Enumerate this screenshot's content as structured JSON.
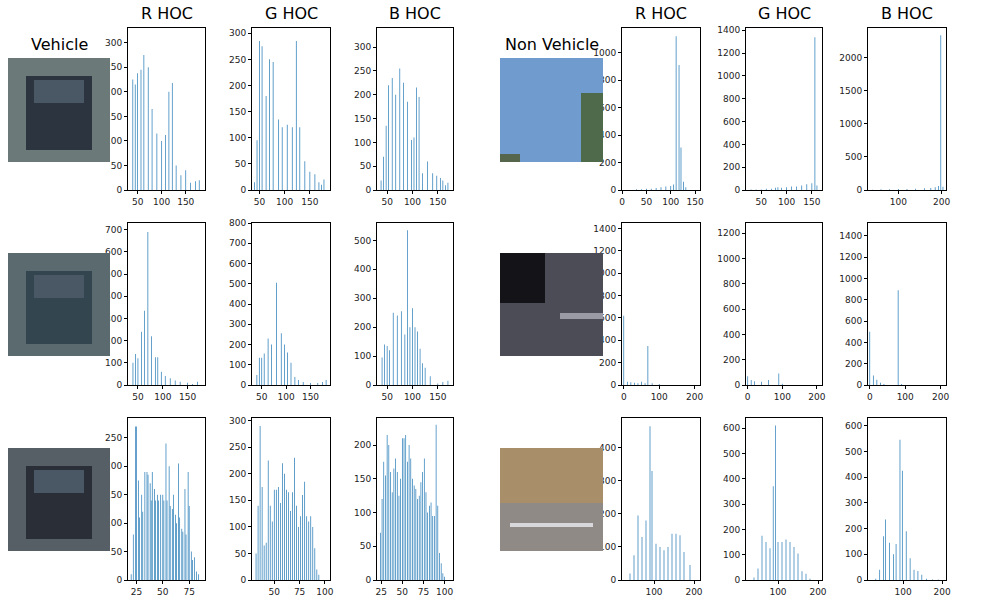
{
  "headings": [
    "Vehicle",
    "Non Vehicle"
  ],
  "chart_data": [
    {
      "type": "bar",
      "title": "R HOC",
      "color": "#1f77b4",
      "x": [
        40,
        45,
        50,
        57,
        63,
        72,
        80,
        90,
        100,
        108,
        115,
        122,
        130,
        140,
        150,
        160,
        170,
        178
      ],
      "values": [
        225,
        215,
        238,
        245,
        275,
        250,
        165,
        115,
        100,
        112,
        200,
        218,
        50,
        30,
        40,
        15,
        18,
        20
      ],
      "xlim": [
        30,
        190
      ],
      "xticks": [
        50,
        100,
        150
      ],
      "ylim": [
        0,
        330
      ],
      "yticks": [
        0,
        50,
        100,
        150,
        200,
        250,
        300
      ]
    },
    {
      "type": "bar",
      "title": "G HOC",
      "color": "#1f77b4",
      "x": [
        40,
        45,
        50,
        55,
        63,
        70,
        77,
        88,
        95,
        105,
        115,
        123,
        130,
        140,
        150,
        160,
        168,
        173,
        178
      ],
      "values": [
        15,
        95,
        285,
        275,
        180,
        250,
        245,
        135,
        120,
        125,
        120,
        285,
        120,
        55,
        35,
        30,
        15,
        10,
        20
      ],
      "xlim": [
        35,
        190
      ],
      "xticks": [
        50,
        100,
        150
      ],
      "ylim": [
        0,
        310
      ],
      "yticks": [
        0,
        50,
        100,
        150,
        200,
        250,
        300
      ]
    },
    {
      "type": "bar",
      "title": "B HOC",
      "color": "#1f77b4",
      "x": [
        38,
        43,
        48,
        53,
        60,
        67,
        75,
        82,
        90,
        98,
        103,
        108,
        113,
        120,
        130,
        140,
        148,
        155,
        160,
        165,
        170
      ],
      "values": [
        20,
        70,
        135,
        220,
        235,
        200,
        255,
        225,
        185,
        105,
        110,
        215,
        195,
        35,
        60,
        35,
        30,
        25,
        20,
        10,
        15
      ],
      "xlim": [
        30,
        180
      ],
      "xticks": [
        50,
        100,
        150
      ],
      "ylim": [
        0,
        340
      ],
      "yticks": [
        0,
        50,
        100,
        150,
        200,
        250,
        300
      ]
    },
    {
      "type": "bar",
      "title": "R HOC",
      "color": "#1f77b4",
      "x": [
        30,
        40,
        50,
        60,
        70,
        80,
        90,
        100,
        106,
        111,
        117,
        121,
        126,
        131
      ],
      "values": [
        5,
        5,
        10,
        10,
        15,
        20,
        25,
        30,
        40,
        1120,
        910,
        310,
        60,
        20
      ],
      "xlim": [
        0,
        160
      ],
      "xticks": [
        0,
        50,
        100,
        150
      ],
      "ylim": [
        0,
        1180
      ],
      "yticks": [
        0,
        200,
        400,
        600,
        800,
        1000
      ]
    },
    {
      "type": "bar",
      "title": "G HOC",
      "color": "#1f77b4",
      "x": [
        30,
        40,
        50,
        60,
        70,
        78,
        83,
        90,
        100,
        110,
        120,
        130,
        140,
        150,
        156,
        160
      ],
      "values": [
        5,
        5,
        5,
        10,
        10,
        20,
        25,
        20,
        25,
        30,
        30,
        40,
        50,
        60,
        1340,
        40
      ],
      "xlim": [
        20,
        170
      ],
      "xticks": [
        50,
        100,
        150
      ],
      "ylim": [
        0,
        1420
      ],
      "yticks": [
        0,
        200,
        400,
        600,
        800,
        1000,
        1200,
        1400
      ]
    },
    {
      "type": "bar",
      "title": "B HOC",
      "color": "#1f77b4",
      "x": [
        40,
        60,
        80,
        100,
        120,
        140,
        160,
        175,
        185,
        193,
        198,
        203
      ],
      "values": [
        5,
        10,
        10,
        15,
        15,
        20,
        25,
        30,
        40,
        60,
        2340,
        50
      ],
      "xlim": [
        30,
        210
      ],
      "xticks": [
        100,
        200
      ],
      "ylim": [
        0,
        2450
      ],
      "yticks": [
        0,
        500,
        1000,
        1500,
        2000
      ]
    },
    {
      "type": "bar",
      "color": "#1f77b4",
      "x": [
        40,
        45,
        50,
        57,
        63,
        70,
        77,
        85,
        90,
        97,
        105,
        115,
        125,
        135,
        150,
        160,
        170
      ],
      "values": [
        100,
        140,
        120,
        240,
        335,
        690,
        220,
        125,
        125,
        60,
        40,
        30,
        20,
        15,
        10,
        5,
        15
      ],
      "xlim": [
        30,
        185
      ],
      "xticks": [
        50,
        100,
        150
      ],
      "ylim": [
        0,
        730
      ],
      "yticks": [
        0,
        100,
        200,
        300,
        400,
        500,
        600,
        700
      ]
    },
    {
      "type": "bar",
      "color": "#1f77b4",
      "x": [
        40,
        45,
        50,
        55,
        63,
        70,
        80,
        90,
        97,
        103,
        110,
        118,
        125,
        135,
        150,
        165,
        175,
        182
      ],
      "values": [
        50,
        135,
        135,
        155,
        230,
        200,
        505,
        255,
        200,
        160,
        110,
        40,
        25,
        15,
        10,
        10,
        15,
        25
      ],
      "xlim": [
        30,
        190
      ],
      "xticks": [
        50,
        100,
        150
      ],
      "ylim": [
        0,
        800
      ],
      "yticks": [
        0,
        100,
        200,
        300,
        400,
        500,
        600,
        700,
        800
      ]
    },
    {
      "type": "bar",
      "color": "#1f77b4",
      "x": [
        40,
        45,
        50,
        55,
        62,
        70,
        78,
        85,
        90,
        95,
        100,
        105,
        110,
        115,
        120,
        125,
        135,
        150,
        160,
        170
      ],
      "values": [
        95,
        140,
        135,
        120,
        250,
        240,
        255,
        175,
        535,
        200,
        265,
        200,
        185,
        125,
        75,
        60,
        30,
        5,
        10,
        15
      ],
      "xlim": [
        30,
        180
      ],
      "xticks": [
        50,
        100,
        150
      ],
      "ylim": [
        0,
        560
      ],
      "yticks": [
        0,
        100,
        200,
        300,
        400,
        500
      ]
    },
    {
      "type": "bar",
      "color": "#1f77b4",
      "x": [
        0,
        10,
        20,
        30,
        40,
        50,
        60,
        68,
        80,
        100
      ],
      "values": [
        620,
        30,
        25,
        20,
        15,
        30,
        15,
        350,
        15,
        10
      ],
      "xlim": [
        -5,
        215
      ],
      "xticks": [
        0,
        100,
        200
      ],
      "ylim": [
        0,
        1450
      ],
      "yticks": [
        0,
        200,
        400,
        600,
        800,
        1000,
        1200,
        1400
      ]
    },
    {
      "type": "bar",
      "color": "#1f77b4",
      "x": [
        0,
        10,
        20,
        40,
        60,
        90,
        100
      ],
      "values": [
        70,
        40,
        30,
        25,
        40,
        90,
        10
      ],
      "xlim": [
        -5,
        215
      ],
      "xticks": [
        0,
        100,
        200
      ],
      "ylim": [
        0,
        1280
      ],
      "yticks": [
        0,
        200,
        400,
        600,
        800,
        1000,
        1200
      ]
    },
    {
      "type": "bar",
      "color": "#1f77b4",
      "x": [
        0,
        10,
        20,
        30,
        40,
        80,
        90
      ],
      "values": [
        500,
        90,
        50,
        20,
        10,
        890,
        10
      ],
      "xlim": [
        -5,
        215
      ],
      "xticks": [
        0,
        100,
        200
      ],
      "ylim": [
        0,
        1520
      ],
      "yticks": [
        0,
        200,
        400,
        600,
        800,
        1000,
        1200,
        1400
      ]
    },
    {
      "type": "bar",
      "color": "#1f77b4",
      "x": [
        20,
        22,
        24,
        25,
        27,
        28,
        30,
        31,
        33,
        35,
        36,
        38,
        39,
        40,
        42,
        43,
        45,
        46,
        48,
        50,
        51,
        53,
        54,
        56,
        57,
        59,
        60,
        62,
        63,
        65,
        66,
        68,
        69,
        71,
        72,
        74,
        75,
        77,
        78,
        80,
        82,
        84
      ],
      "values": [
        10,
        80,
        270,
        270,
        175,
        110,
        150,
        120,
        190,
        190,
        185,
        170,
        140,
        190,
        160,
        140,
        150,
        140,
        150,
        150,
        140,
        240,
        140,
        200,
        130,
        125,
        150,
        115,
        100,
        205,
        110,
        90,
        85,
        160,
        80,
        190,
        130,
        50,
        35,
        40,
        15,
        10
      ],
      "xlim": [
        17,
        90
      ],
      "xticks": [
        25,
        50,
        75
      ],
      "ylim": [
        0,
        285
      ],
      "yticks": [
        0,
        50,
        100,
        150,
        200,
        250
      ]
    },
    {
      "type": "bar",
      "color": "#1f77b4",
      "x": [
        32,
        34,
        36,
        38,
        40,
        42,
        44,
        46,
        48,
        50,
        52,
        54,
        56,
        58,
        60,
        62,
        64,
        66,
        68,
        70,
        72,
        74,
        76,
        78,
        80,
        82,
        84,
        86,
        88,
        90,
        92,
        94
      ],
      "values": [
        50,
        140,
        290,
        175,
        65,
        70,
        225,
        140,
        110,
        170,
        170,
        175,
        145,
        220,
        200,
        170,
        165,
        130,
        165,
        230,
        140,
        100,
        120,
        160,
        185,
        120,
        110,
        120,
        100,
        60,
        20,
        10
      ],
      "xlim": [
        28,
        105
      ],
      "xticks": [
        50,
        75,
        100
      ],
      "ylim": [
        0,
        305
      ],
      "yticks": [
        0,
        50,
        100,
        150,
        200,
        250,
        300
      ]
    },
    {
      "type": "bar",
      "color": "#1f77b4",
      "x": [
        24,
        26,
        28,
        30,
        32,
        34,
        36,
        38,
        40,
        42,
        44,
        46,
        48,
        50,
        52,
        54,
        56,
        58,
        60,
        62,
        64,
        66,
        68,
        70,
        72,
        74,
        76,
        78,
        80,
        82,
        84,
        86,
        88,
        90,
        92,
        94,
        96,
        98,
        100
      ],
      "values": [
        70,
        120,
        175,
        155,
        215,
        200,
        160,
        130,
        165,
        180,
        160,
        125,
        150,
        210,
        210,
        215,
        175,
        200,
        180,
        150,
        140,
        135,
        120,
        125,
        145,
        160,
        180,
        130,
        100,
        110,
        115,
        95,
        95,
        230,
        110,
        40,
        25,
        10,
        5
      ],
      "xlim": [
        20,
        110
      ],
      "xticks": [
        25,
        50,
        75,
        100
      ],
      "ylim": [
        0,
        240
      ],
      "yticks": [
        0,
        50,
        100,
        150,
        200
      ]
    },
    {
      "type": "bar",
      "color": "#1f77b4",
      "x": [
        40,
        50,
        60,
        70,
        80,
        90,
        95,
        105,
        115,
        125,
        135,
        145,
        155,
        165,
        175,
        190
      ],
      "values": [
        20,
        75,
        195,
        130,
        180,
        465,
        330,
        110,
        100,
        90,
        100,
        140,
        140,
        135,
        85,
        45
      ],
      "xlim": [
        20,
        215
      ],
      "xticks": [
        100,
        200
      ],
      "ylim": [
        0,
        490
      ],
      "yticks": [
        0,
        100,
        200,
        300,
        400
      ]
    },
    {
      "type": "bar",
      "color": "#1f77b4",
      "x": [
        40,
        50,
        60,
        70,
        80,
        88,
        94,
        100,
        110,
        120,
        130,
        140,
        150,
        160,
        170,
        180
      ],
      "values": [
        10,
        45,
        175,
        150,
        125,
        370,
        610,
        150,
        150,
        160,
        150,
        130,
        105,
        35,
        25,
        5
      ],
      "xlim": [
        20,
        210
      ],
      "xticks": [
        100,
        200
      ],
      "ylim": [
        0,
        640
      ],
      "yticks": [
        0,
        100,
        200,
        300,
        400,
        500,
        600
      ]
    },
    {
      "type": "bar",
      "color": "#1f77b4",
      "x": [
        30,
        40,
        50,
        55,
        65,
        75,
        82,
        92,
        98,
        108,
        118,
        128,
        138,
        148,
        160,
        175,
        190
      ],
      "values": [
        5,
        40,
        170,
        235,
        145,
        100,
        140,
        545,
        425,
        190,
        85,
        40,
        35,
        20,
        5,
        2,
        2
      ],
      "xlim": [
        10,
        210
      ],
      "xticks": [
        100,
        200
      ],
      "ylim": [
        0,
        630
      ],
      "yticks": [
        0,
        100,
        200,
        300,
        400,
        500,
        600
      ]
    }
  ]
}
